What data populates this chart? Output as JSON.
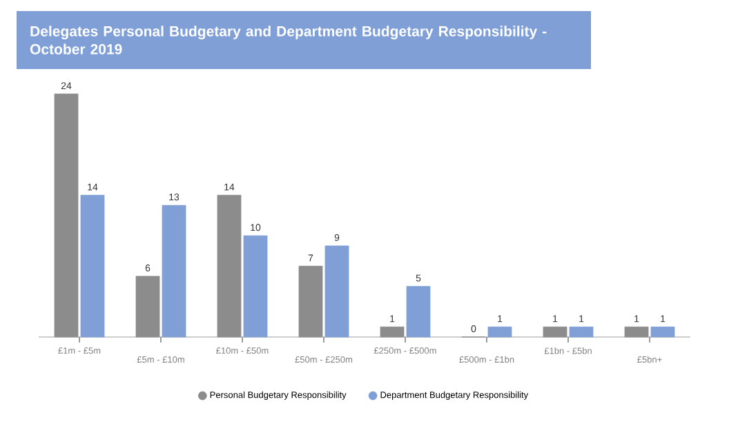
{
  "chart_data": {
    "type": "bar",
    "title": "Delegates Personal Budgetary and Department Budgetary Responsibility - October 2019",
    "categories": [
      "£1m - £5m",
      "£5m - £10m",
      "£10m - £50m",
      "£50m - £250m",
      "£250m - £500m",
      "£500m - £1bn",
      "£1bn - £5bn",
      "£5bn+"
    ],
    "series": [
      {
        "name": "Personal Budgetary Responsibility",
        "color": "#8c8c8c",
        "values": [
          24,
          6,
          14,
          7,
          1,
          0,
          1,
          1
        ]
      },
      {
        "name": "Department Budgetary Responsibility",
        "color": "#7f9fd6",
        "values": [
          14,
          13,
          10,
          9,
          5,
          1,
          1,
          1
        ]
      }
    ],
    "legend": "bottom",
    "data_labels": true
  }
}
